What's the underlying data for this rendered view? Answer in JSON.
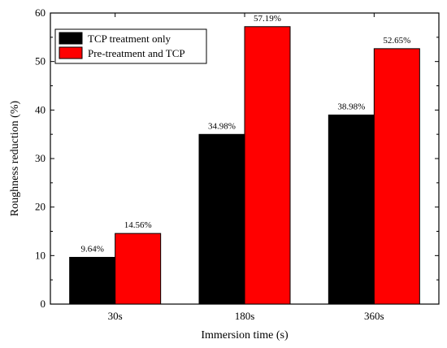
{
  "chart_data": {
    "type": "bar",
    "xlabel": "Immersion time (s)",
    "ylabel": "Roughness reduction (%)",
    "categories": [
      "30s",
      "180s",
      "360s"
    ],
    "ylim": [
      0,
      60
    ],
    "yticks": [
      0,
      10,
      20,
      30,
      40,
      50,
      60
    ],
    "legend_position": "top-left",
    "grid": false,
    "series": [
      {
        "name": "TCP treatment only",
        "color": "#000000",
        "values": [
          9.64,
          34.98,
          38.98
        ],
        "labels": [
          "9.64%",
          "34.98%",
          "38.98%"
        ]
      },
      {
        "name": "Pre-treatment and TCP",
        "color": "#ff0000",
        "values": [
          14.56,
          57.19,
          52.65
        ],
        "labels": [
          "14.56%",
          "57.19%",
          "52.65%"
        ]
      }
    ]
  }
}
